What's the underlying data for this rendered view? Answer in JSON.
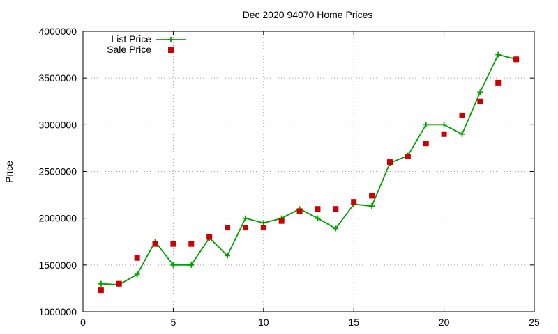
{
  "chart_data": {
    "type": "line",
    "title": "Dec 2020 94070 Home Prices",
    "xlabel": "",
    "ylabel": "Price",
    "xlim": [
      0,
      25
    ],
    "ylim": [
      1000000,
      4000000
    ],
    "xticks": [
      0,
      5,
      10,
      15,
      20,
      25
    ],
    "yticks": [
      1000000,
      1500000,
      2000000,
      2500000,
      3000000,
      3500000,
      4000000
    ],
    "x_tick_labels": [
      "0",
      "5",
      "10",
      "15",
      "20",
      "25"
    ],
    "y_tick_labels": [
      "1000000",
      "1500000",
      "2000000",
      "2500000",
      "3000000",
      "3500000",
      "4000000"
    ],
    "grid": true,
    "legend_position": "top-left",
    "series": [
      {
        "name": "List Price",
        "style": "line+plus",
        "color": "#00a000",
        "x": [
          1,
          2,
          3,
          4,
          5,
          6,
          7,
          8,
          9,
          10,
          11,
          12,
          13,
          14,
          15,
          16,
          17,
          18,
          19,
          20,
          21,
          22,
          23,
          24
        ],
        "values": [
          1300000,
          1290000,
          1400000,
          1750000,
          1500000,
          1500000,
          1790000,
          1600000,
          2000000,
          1950000,
          2000000,
          2100000,
          2000000,
          1890000,
          2150000,
          2130000,
          2590000,
          2670000,
          3000000,
          3000000,
          2900000,
          3350000,
          3750000,
          3700000
        ]
      },
      {
        "name": "Sale Price",
        "style": "square-points",
        "color": "#cc0000",
        "x": [
          1,
          2,
          3,
          4,
          5,
          6,
          7,
          8,
          9,
          10,
          11,
          12,
          13,
          14,
          15,
          16,
          17,
          18,
          19,
          20,
          21,
          22,
          23,
          24
        ],
        "values": [
          1230000,
          1300000,
          1575000,
          1725000,
          1725000,
          1725000,
          1800000,
          1900000,
          1900000,
          1900000,
          1970000,
          2075000,
          2100000,
          2100000,
          2175000,
          2240000,
          2600000,
          2660000,
          2800000,
          2900000,
          3100000,
          3250000,
          3450000,
          3700000
        ]
      }
    ]
  }
}
